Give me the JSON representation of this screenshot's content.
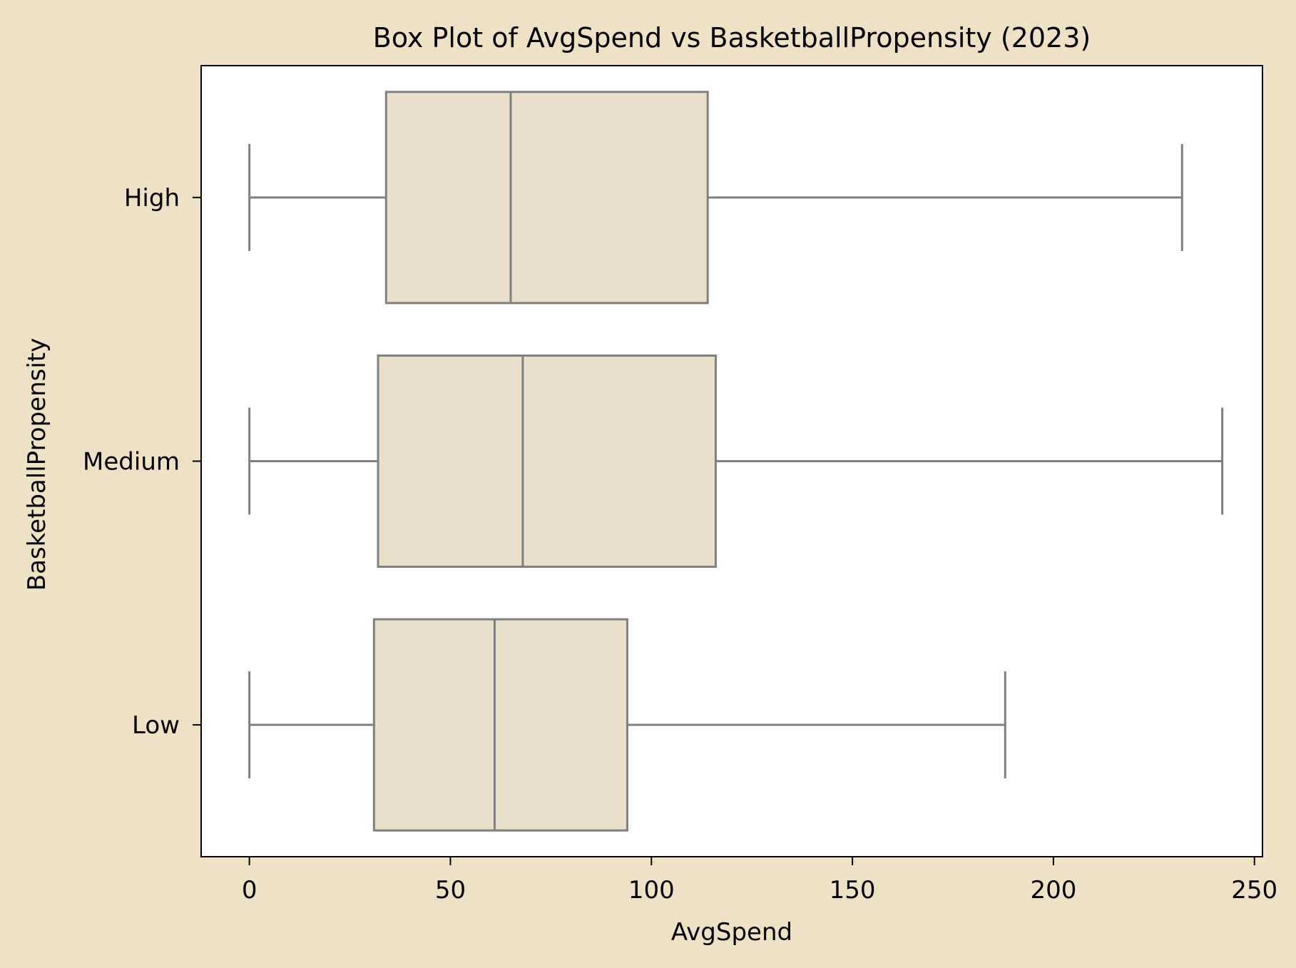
{
  "chart_data": {
    "type": "box",
    "title": "Box Plot of AvgSpend vs BasketballPropensity (2023)",
    "xlabel": "AvgSpend",
    "ylabel": "BasketballPropensity",
    "xlim": [
      -12,
      252
    ],
    "xticks": [
      0,
      50,
      100,
      150,
      200,
      250
    ],
    "categories": [
      "High",
      "Medium",
      "Low"
    ],
    "boxes": [
      {
        "category": "High",
        "whisker_low": 0,
        "q1": 34,
        "median": 65,
        "q3": 114,
        "whisker_high": 232
      },
      {
        "category": "Medium",
        "whisker_low": 0,
        "q1": 32,
        "median": 68,
        "q3": 116,
        "whisker_high": 242
      },
      {
        "category": "Low",
        "whisker_low": 0,
        "q1": 31,
        "median": 61,
        "q3": 94,
        "whisker_high": 188
      }
    ],
    "grid": false,
    "colors": {
      "box_fill": "#eadfca",
      "box_stroke": "#808080",
      "background": "#efe1c6",
      "plot_bg": "#ffffff"
    }
  }
}
